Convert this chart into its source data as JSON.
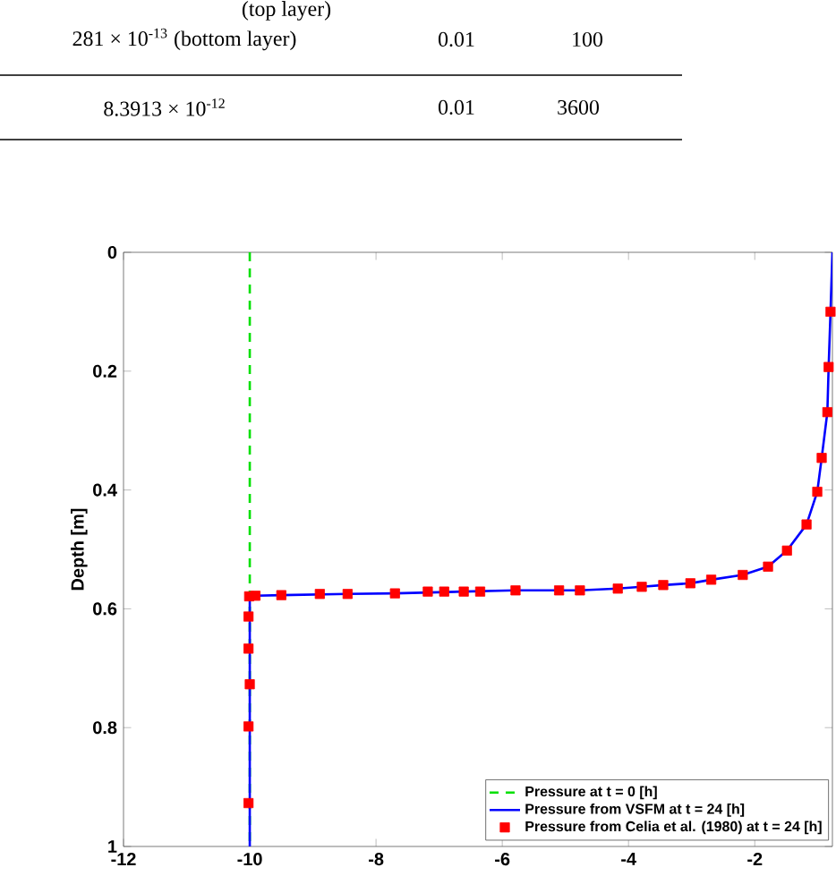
{
  "chart_data": {
    "type": "line",
    "ylabel": "Depth [m]",
    "xlim": [
      -12,
      -0.77
    ],
    "ylim": [
      1,
      0
    ],
    "xticks": [
      -12,
      -10,
      -8,
      -6,
      -4,
      -2
    ],
    "yticks": [
      0,
      0.2,
      0.4,
      0.6,
      0.8,
      1
    ],
    "legend": "bottom right",
    "annotations": [
      "(top layer)",
      "281 × 10$^{-13}$ (bottom layer)",
      "0.01",
      "100",
      "8.3913 × 10$^{-12}$",
      "0.01",
      "3600"
    ],
    "series": [
      {
        "name": "Pressure at t = 0 [h]",
        "color": "#00e000",
        "line_style": "dashed",
        "marker": "none",
        "x": [
          -10,
          -10
        ],
        "values": [
          0,
          1
        ]
      },
      {
        "name": "Pressure from VSFM at t = 24 [h]",
        "color": "#0000ff",
        "line_style": "solid",
        "marker": "none",
        "x": [
          -0.77,
          -0.8,
          -0.83,
          -0.85,
          -0.94,
          -1.01,
          -1.18,
          -1.49,
          -1.79,
          -2.19,
          -2.69,
          -3.02,
          -3.45,
          -3.79,
          -4.17,
          -4.77,
          -5.79,
          -6.61,
          -7.7,
          -8.45,
          -9.5,
          -9.91,
          -10.0,
          -10.0
        ],
        "values": [
          0,
          0.1,
          0.193,
          0.269,
          0.346,
          0.403,
          0.458,
          0.502,
          0.529,
          0.543,
          0.551,
          0.557,
          0.56,
          0.563,
          0.566,
          0.569,
          0.569,
          0.571,
          0.574,
          0.575,
          0.577,
          0.578,
          0.582,
          1
        ]
      },
      {
        "name": "Pressure from Celia et al. (1980) at t = 24 [h]",
        "type": "scatter",
        "color": "#ff0000",
        "marker": "square",
        "x": [
          -0.8,
          -0.83,
          -0.85,
          -0.94,
          -1.01,
          -1.18,
          -1.49,
          -1.79,
          -2.19,
          -2.69,
          -3.02,
          -3.45,
          -3.79,
          -4.17,
          -4.77,
          -5.1,
          -5.79,
          -6.35,
          -6.61,
          -6.92,
          -7.18,
          -7.7,
          -8.45,
          -8.89,
          -9.5,
          -9.91,
          -10.01,
          -10.02,
          -10.02,
          -10.0,
          -10.02,
          -10.02
        ],
        "values": [
          0.1,
          0.193,
          0.269,
          0.346,
          0.403,
          0.458,
          0.502,
          0.529,
          0.543,
          0.551,
          0.557,
          0.56,
          0.563,
          0.566,
          0.569,
          0.569,
          0.569,
          0.571,
          0.571,
          0.571,
          0.571,
          0.574,
          0.575,
          0.575,
          0.577,
          0.578,
          0.579,
          0.613,
          0.667,
          0.727,
          0.798,
          0.927
        ]
      }
    ]
  }
}
